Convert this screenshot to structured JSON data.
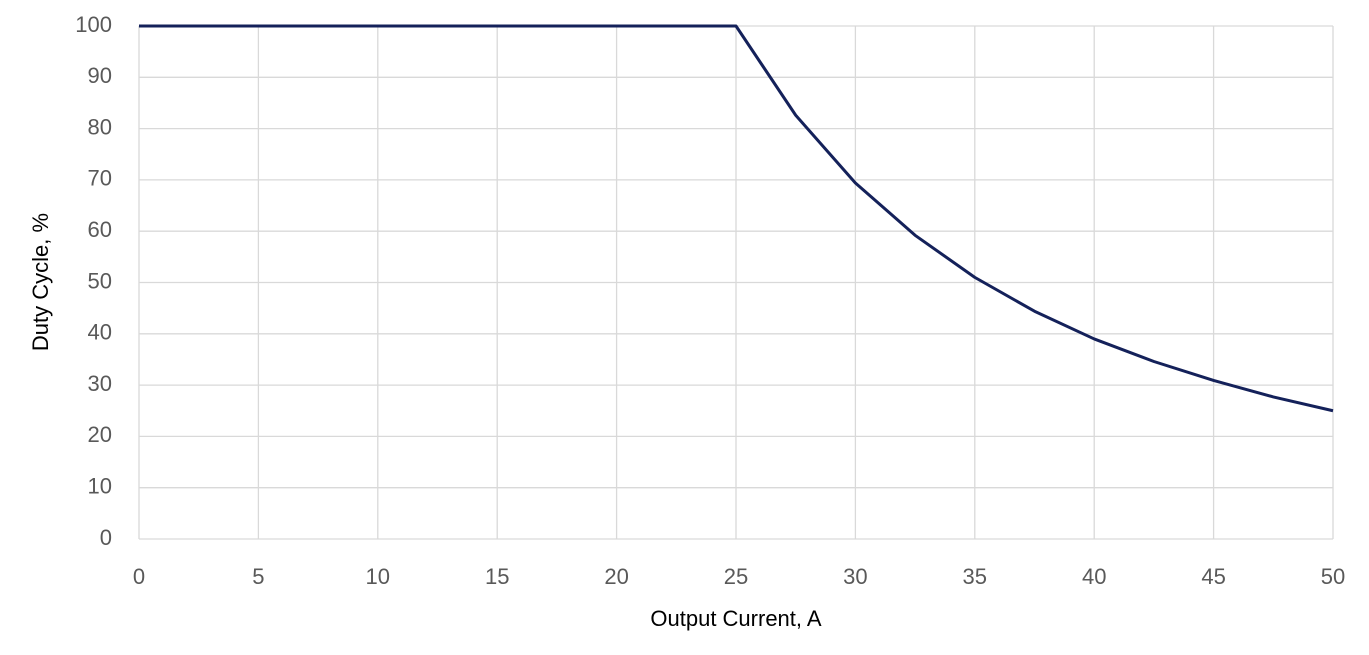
{
  "chart_data": {
    "type": "line",
    "x_label": "Output Current, A",
    "y_label": "Duty Cycle, %",
    "x": [
      0,
      25,
      27.5,
      30,
      32.5,
      35,
      37.5,
      40,
      42.5,
      45,
      47.5,
      50
    ],
    "values": [
      100,
      100,
      82.6,
      69.4,
      59.2,
      51,
      44.4,
      39,
      34.6,
      30.9,
      27.7,
      25
    ],
    "color": "#14215a",
    "xlim": [
      0,
      50
    ],
    "xticks": [
      0,
      5,
      10,
      15,
      20,
      25,
      30,
      35,
      40,
      45,
      50
    ],
    "ylim": [
      0,
      100
    ],
    "yticks": [
      0,
      10,
      20,
      30,
      40,
      50,
      60,
      70,
      80,
      90,
      100
    ],
    "grid": true
  }
}
